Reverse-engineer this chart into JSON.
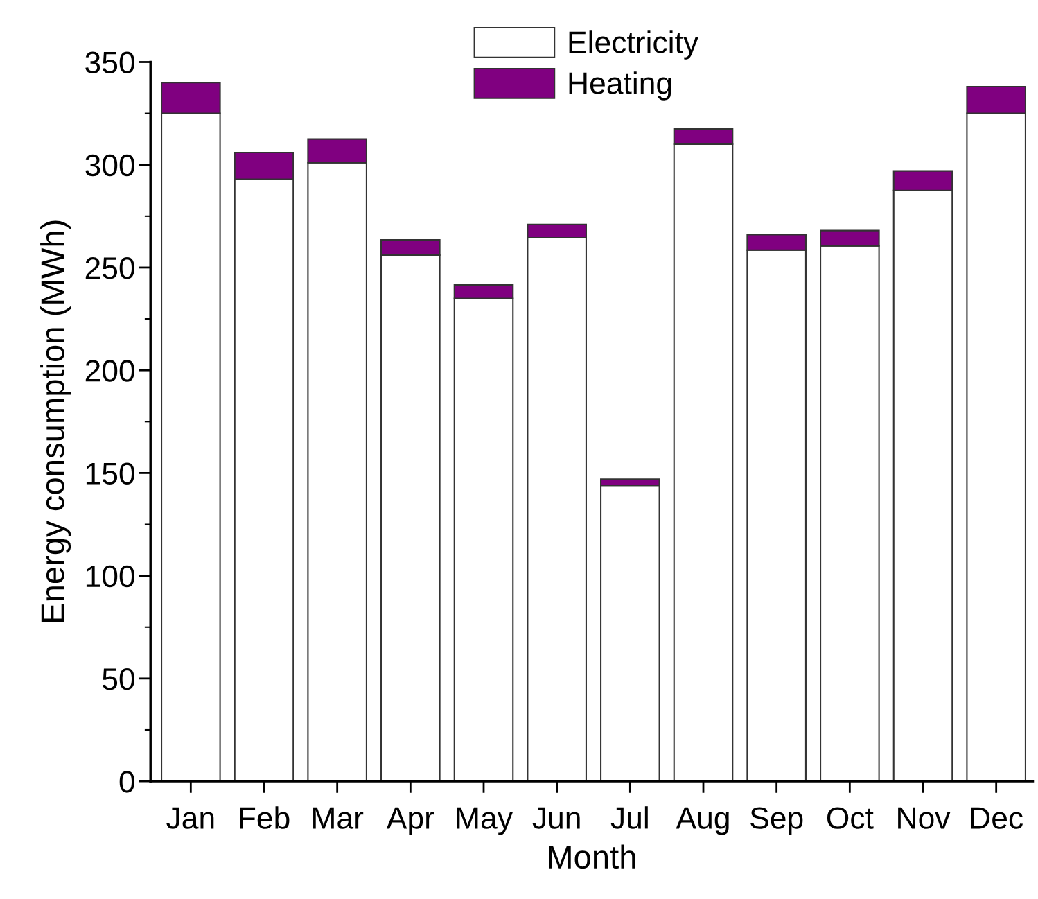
{
  "chart_data": {
    "type": "bar",
    "stacked": true,
    "xlabel": "Month",
    "ylabel": "Energy consumption (MWh)",
    "categories": [
      "Jan",
      "Feb",
      "Mar",
      "Apr",
      "May",
      "Jun",
      "Jul",
      "Aug",
      "Sep",
      "Oct",
      "Nov",
      "Dec"
    ],
    "series": [
      {
        "name": "Electricity",
        "color": "#ffffff",
        "values": [
          325,
          293,
          301,
          256,
          235,
          264.5,
          144,
          310,
          258.5,
          260.5,
          287.5,
          325
        ]
      },
      {
        "name": "Heating",
        "color": "#800080",
        "values": [
          15,
          13,
          11.5,
          7.5,
          6.5,
          6.5,
          3,
          7.5,
          7.5,
          7.5,
          9.5,
          13
        ]
      }
    ],
    "ylim": [
      0,
      350
    ],
    "yticks": [
      0,
      50,
      100,
      150,
      200,
      250,
      300,
      350
    ],
    "grid": false,
    "legend": "top"
  }
}
